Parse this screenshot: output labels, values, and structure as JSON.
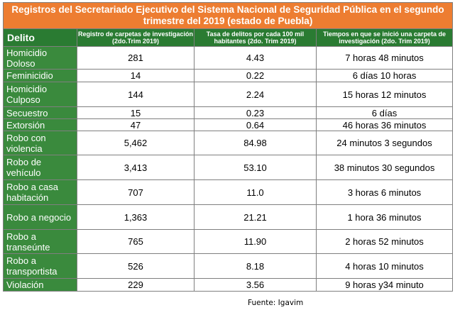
{
  "title": "Registros del Secretariado Ejecutivo del Sistema Nacional de Seguridad Pública en el segundo trimestre del 2019 (estado de Puebla)",
  "headers": {
    "delito": "Delito",
    "registro": "Registro de carpetas de investigación (2do.Trim 2019)",
    "tasa": "Tasa de delitos por cada 100 mil habitantes (2do. Trim 2019)",
    "tiempos": "Tiempos en que se inició una carpeta de investigación (2do. Trim 2019)"
  },
  "rows": [
    {
      "delito": "Homicidio Doloso",
      "registro": "281",
      "tasa": "4.43",
      "tiempo": "7 horas 48 minutos"
    },
    {
      "delito": "Feminicidio",
      "registro": "14",
      "tasa": "0.22",
      "tiempo": "6 días 10 horas"
    },
    {
      "delito": "Homicidio Culposo",
      "registro": "144",
      "tasa": "2.24",
      "tiempo": "15 horas 12 minutos"
    },
    {
      "delito": "Secuestro",
      "registro": "15",
      "tasa": "0.23",
      "tiempo": "6 días"
    },
    {
      "delito": "Extorsión",
      "registro": "47",
      "tasa": "0.64",
      "tiempo": "46 horas 36 minutos"
    },
    {
      "delito": "Robo con violencia",
      "registro": "5,462",
      "tasa": "84.98",
      "tiempo": "24 minutos 3 segundos"
    },
    {
      "delito": "Robo de vehículo",
      "registro": "3,413",
      "tasa": "53.10",
      "tiempo": "38 minutos 30 segundos"
    },
    {
      "delito": "Robo a casa habitación",
      "registro": "707",
      "tasa": "11.0",
      "tiempo": "3 horas 6 minutos"
    },
    {
      "delito": "Robo a negocio",
      "registro": "1,363",
      "tasa": "21.21",
      "tiempo": "1 hora 36 minutos"
    },
    {
      "delito": "Robo a transeúnte",
      "registro": "765",
      "tasa": "11.90",
      "tiempo": "2 horas 52 minutos"
    },
    {
      "delito": "Robo a transportista",
      "registro": "526",
      "tasa": "8.18",
      "tiempo": "4 horas 10 minutos"
    },
    {
      "delito": "Violación",
      "registro": "229",
      "tasa": "3.56",
      "tiempo": "9 horas y34 minuto"
    }
  ],
  "source": "Fuente: Igavim",
  "colors": {
    "title_bg": "#ed7d31",
    "header_bg": "#2a7b32",
    "label_bg": "#3a8a3d"
  }
}
